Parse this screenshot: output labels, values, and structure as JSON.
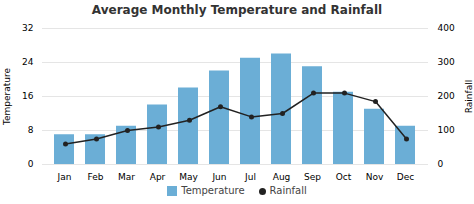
{
  "chart_data": {
    "type": "bar",
    "title": "Average Monthly Temperature and Rainfall",
    "categories": [
      "Jan",
      "Feb",
      "Mar",
      "Apr",
      "May",
      "Jun",
      "Jul",
      "Aug",
      "Sep",
      "Oct",
      "Nov",
      "Dec"
    ],
    "series": [
      {
        "name": "Temperature",
        "type": "bar",
        "color": "#6baed6",
        "values": [
          7,
          7,
          9,
          14,
          18,
          22,
          25,
          26,
          23,
          17,
          13,
          9
        ]
      },
      {
        "name": "Rainfall",
        "type": "line",
        "marker": "circle",
        "color": "#222222",
        "axis": "y2",
        "values": [
          60,
          75,
          100,
          110,
          130,
          170,
          140,
          150,
          210,
          210,
          185,
          75
        ]
      }
    ],
    "ylabel": "Temperature",
    "y2label": "Rainfall",
    "ylim": [
      0,
      32
    ],
    "yticks": [
      0,
      8,
      16,
      24,
      32
    ],
    "y2lim": [
      0,
      400
    ],
    "y2ticks": [
      0,
      100,
      200,
      300,
      400
    ],
    "grid": true,
    "legend": "bottom"
  }
}
